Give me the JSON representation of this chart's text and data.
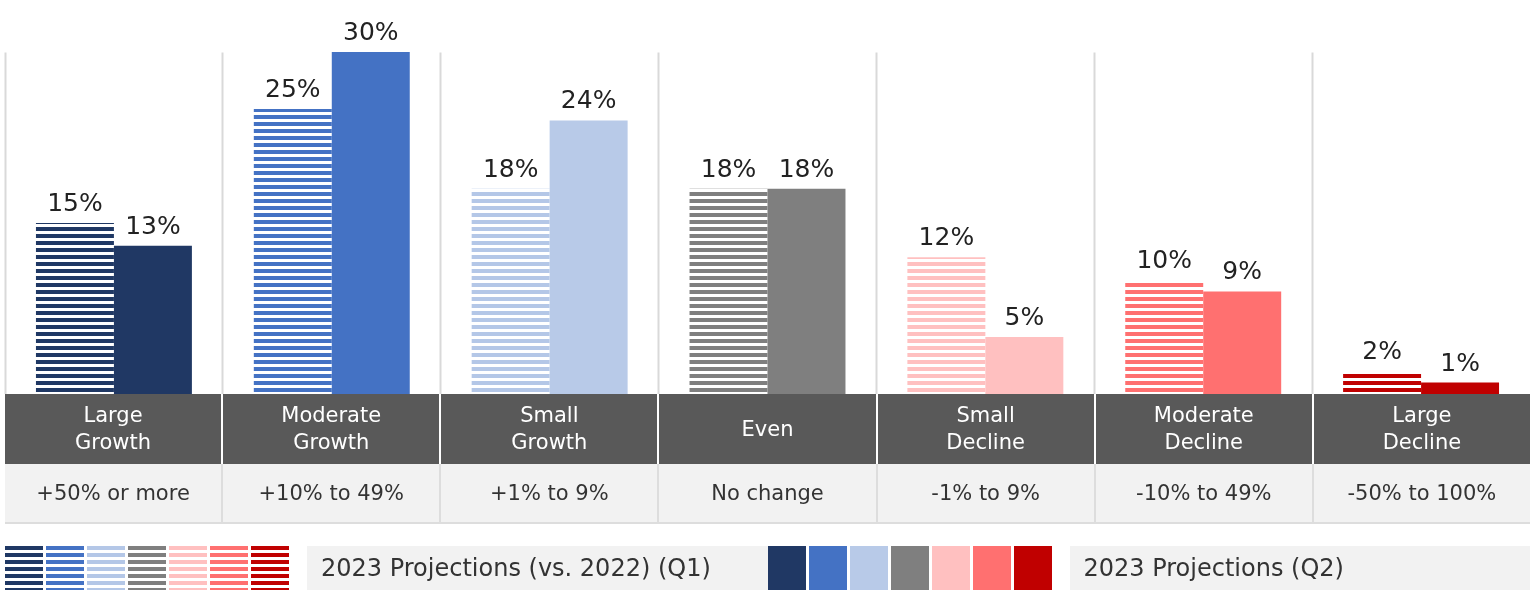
{
  "chart_data": {
    "type": "bar",
    "categories": [
      "Large Growth",
      "Moderate Growth",
      "Small Growth",
      "Even",
      "Small Decline",
      "Moderate Decline",
      "Large Decline"
    ],
    "series": [
      {
        "name": "2023 Projections (vs. 2022) (Q1)",
        "colors": [
          "#1f3864",
          "#4472c4",
          "#b4c7e7",
          "#7f7f7f",
          "#ffc0c0",
          "#ff7070",
          "#c00000"
        ],
        "values": [
          15,
          25,
          18,
          18,
          12,
          10,
          2
        ],
        "value_labels": [
          "15%",
          "25%",
          "18%",
          "18%",
          "12%",
          "10%",
          "2%"
        ]
      },
      {
        "name": "2023 Projections (Q2)",
        "colors": [
          "#203864",
          "#4472c4",
          "#b8cae8",
          "#7f7f7f",
          "#ffc0c0",
          "#ff7070",
          "#c00000"
        ],
        "values": [
          13,
          30,
          24,
          18,
          5,
          9,
          1
        ],
        "value_labels": [
          "13%",
          "30%",
          "24%",
          "18%",
          "5%",
          "9%",
          "1%"
        ]
      }
    ],
    "annotations": [
      "+50% or more",
      "+10% to 49%",
      "+1% to 9%",
      "No change",
      "-1% to 9%",
      "-10% to 49%",
      "-50% to 100%"
    ],
    "grid": "x",
    "legend": "bottom",
    "tick_labels": false
  }
}
